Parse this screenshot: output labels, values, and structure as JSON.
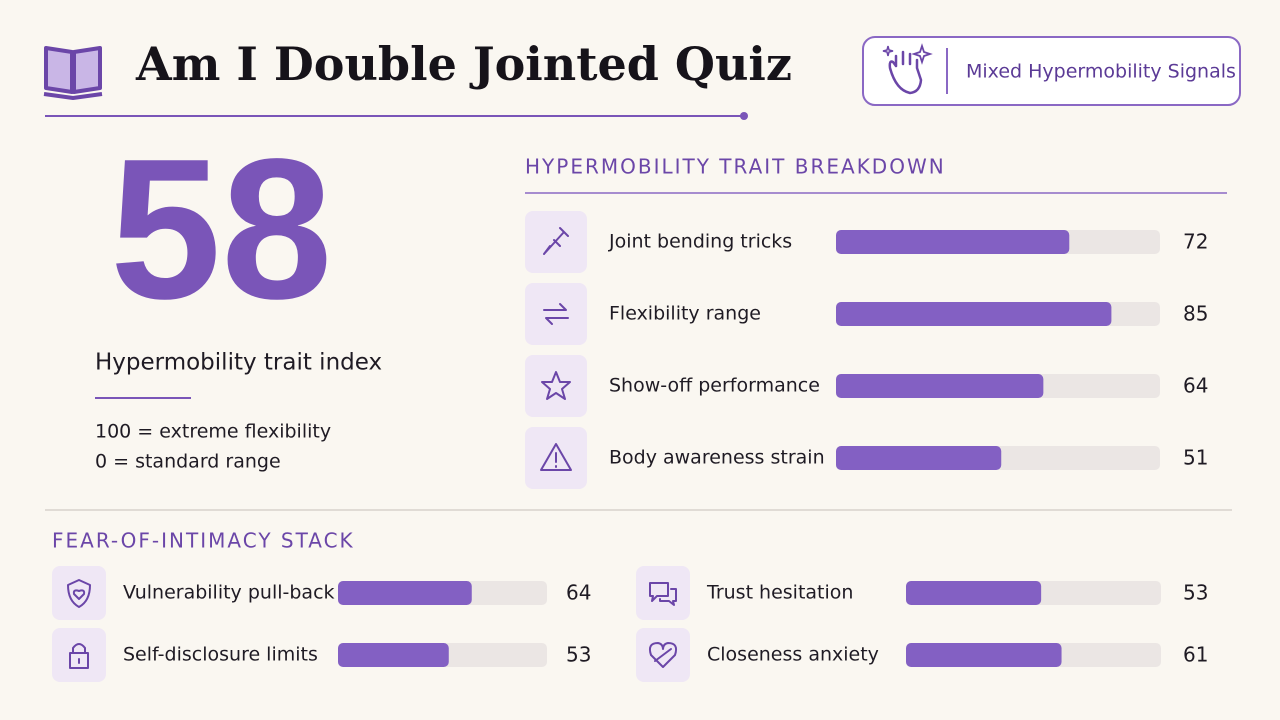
{
  "header": {
    "title": "Am I Double Jointed Quiz",
    "badge": "Mixed Hypermobility Signals"
  },
  "score": {
    "value": "58",
    "label": "Hypermobility trait index",
    "notes": [
      {
        "value": 100,
        "label": "100 = extreme flexibility"
      },
      {
        "value": 0,
        "label": "0 = standard range"
      }
    ]
  },
  "breakdown": {
    "title": "HYPERMOBILITY TRAIT BREAKDOWN",
    "items": [
      {
        "label": "Joint bending tricks",
        "value": 72
      },
      {
        "label": "Flexibility range",
        "value": 85
      },
      {
        "label": "Show-off performance",
        "value": 64
      },
      {
        "label": "Body awareness strain",
        "value": 51
      }
    ]
  },
  "stack": {
    "title": "FEAR-OF-INTIMACY STACK",
    "items": [
      {
        "label": "Vulnerability pull-back",
        "value": 64
      },
      {
        "label": "Self-disclosure limits",
        "value": 53
      },
      {
        "label": "Trust hesitation",
        "value": 53
      },
      {
        "label": "Closeness anxiety",
        "value": 61
      }
    ]
  }
}
